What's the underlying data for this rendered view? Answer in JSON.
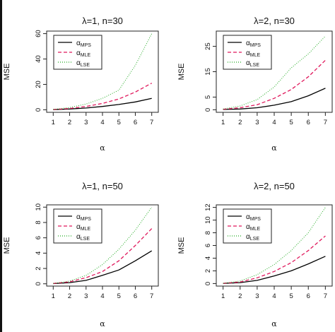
{
  "chart_data": [
    {
      "type": "line",
      "title": "λ=1, n=30",
      "xlabel": "α",
      "ylabel": "MSE",
      "xlim": [
        0.6,
        7.4
      ],
      "ylim": [
        -2,
        62
      ],
      "x_ticks": [
        1,
        2,
        3,
        4,
        5,
        6,
        7
      ],
      "y_ticks": [
        0,
        20,
        40,
        60
      ],
      "x": [
        1,
        2,
        3,
        4,
        5,
        6,
        7
      ],
      "series": [
        {
          "name": "α",
          "subscript": "MPS",
          "color": "#000000",
          "style": "solid",
          "values": [
            0.1,
            0.6,
            1.4,
            2.6,
            4.2,
            6.2,
            9
          ]
        },
        {
          "name": "α",
          "subscript": "MLE",
          "color": "#e0185c",
          "style": "dashed",
          "values": [
            0.2,
            1,
            2.6,
            5,
            8.5,
            14,
            21
          ]
        },
        {
          "name": "α",
          "subscript": "LSE",
          "color": "#22aa22",
          "style": "dotted",
          "values": [
            0.3,
            1.8,
            4.5,
            9,
            15.5,
            35,
            60
          ]
        }
      ],
      "legend_position": "top-left"
    },
    {
      "type": "line",
      "title": "λ=2, n=30",
      "xlabel": "α",
      "ylabel": "MSE",
      "xlim": [
        0.6,
        7.4
      ],
      "ylim": [
        -1,
        31
      ],
      "x_ticks": [
        1,
        2,
        3,
        4,
        5,
        6,
        7
      ],
      "y_ticks": [
        0,
        5,
        15,
        25
      ],
      "x": [
        1,
        2,
        3,
        4,
        5,
        6,
        7
      ],
      "series": [
        {
          "name": "α",
          "subscript": "MPS",
          "color": "#000000",
          "style": "solid",
          "values": [
            0.1,
            0.3,
            0.8,
            1.8,
            3.2,
            5.5,
            8.5
          ]
        },
        {
          "name": "α",
          "subscript": "MLE",
          "color": "#e0185c",
          "style": "dashed",
          "values": [
            0.2,
            0.8,
            2,
            4.5,
            8,
            13,
            19.5
          ]
        },
        {
          "name": "α",
          "subscript": "LSE",
          "color": "#22aa22",
          "style": "dotted",
          "values": [
            0.3,
            1.5,
            4,
            9,
            16.5,
            22,
            29
          ]
        }
      ],
      "legend_position": "top-left"
    },
    {
      "type": "line",
      "title": "λ=1, n=50",
      "xlabel": "α",
      "ylabel": "MSE",
      "xlim": [
        0.6,
        7.4
      ],
      "ylim": [
        -0.3,
        10.3
      ],
      "x_ticks": [
        1,
        2,
        3,
        4,
        5,
        6,
        7
      ],
      "y_ticks": [
        0,
        2,
        4,
        6,
        8,
        10
      ],
      "x": [
        1,
        2,
        3,
        4,
        5,
        6,
        7
      ],
      "series": [
        {
          "name": "α",
          "subscript": "MPS",
          "color": "#000000",
          "style": "solid",
          "values": [
            0.02,
            0.15,
            0.45,
            1.1,
            1.8,
            3,
            4.3
          ]
        },
        {
          "name": "α",
          "subscript": "MLE",
          "color": "#e0185c",
          "style": "dashed",
          "values": [
            0.04,
            0.25,
            0.8,
            1.6,
            3,
            5,
            7.2
          ]
        },
        {
          "name": "α",
          "subscript": "LSE",
          "color": "#22aa22",
          "style": "dotted",
          "values": [
            0.05,
            0.35,
            1.1,
            2.5,
            4.5,
            7,
            10
          ]
        }
      ],
      "legend_position": "top-left"
    },
    {
      "type": "line",
      "title": "λ=2, n=50",
      "xlabel": "α",
      "ylabel": "MSE",
      "xlim": [
        0.6,
        7.4
      ],
      "ylim": [
        -0.4,
        12.4
      ],
      "x_ticks": [
        1,
        2,
        3,
        4,
        5,
        6,
        7
      ],
      "y_ticks": [
        0,
        2,
        4,
        6,
        8,
        10,
        12
      ],
      "x": [
        1,
        2,
        3,
        4,
        5,
        6,
        7
      ],
      "series": [
        {
          "name": "α",
          "subscript": "MPS",
          "color": "#000000",
          "style": "solid",
          "values": [
            0.02,
            0.15,
            0.5,
            1.2,
            2,
            3.1,
            4.3
          ]
        },
        {
          "name": "α",
          "subscript": "MLE",
          "color": "#e0185c",
          "style": "dashed",
          "values": [
            0.03,
            0.25,
            0.9,
            1.9,
            3.3,
            5.2,
            7.5
          ]
        },
        {
          "name": "α",
          "subscript": "LSE",
          "color": "#22aa22",
          "style": "dotted",
          "values": [
            0.05,
            0.4,
            1.4,
            3,
            5.2,
            8,
            12
          ]
        }
      ],
      "legend_position": "top-left"
    }
  ]
}
